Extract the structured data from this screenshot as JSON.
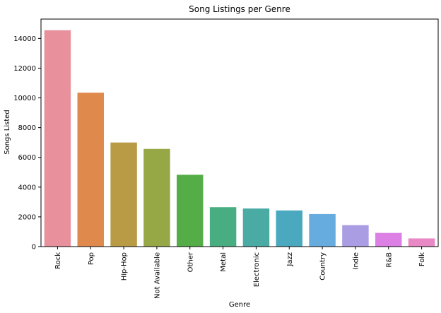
{
  "chart_data": {
    "type": "bar",
    "title": "Song Listings per Genre",
    "xlabel": "Genre",
    "ylabel": "Songs Listed",
    "categories": [
      "Rock",
      "Pop",
      "Hip-Hop",
      "Not Available",
      "Other",
      "Metal",
      "Electronic",
      "Jazz",
      "Country",
      "Indie",
      "R&B",
      "Folk"
    ],
    "values": [
      14550,
      10350,
      7000,
      6570,
      4830,
      2650,
      2560,
      2430,
      2190,
      1440,
      920,
      550
    ],
    "colors": [
      "#e8919d",
      "#e0894d",
      "#b99b45",
      "#96a746",
      "#55ad47",
      "#48ae82",
      "#49aba3",
      "#4aa9bf",
      "#67acdf",
      "#ab9de4",
      "#dc80e6",
      "#e888c5"
    ],
    "yticks": [
      0,
      2000,
      4000,
      6000,
      8000,
      10000,
      12000,
      14000
    ],
    "ylim": [
      0,
      15300
    ],
    "grid": false,
    "legend": "none"
  }
}
